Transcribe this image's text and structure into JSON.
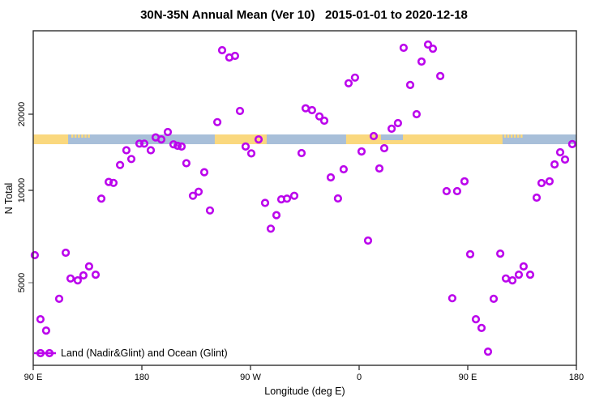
{
  "title": "30N-35N Annual Mean (Ver 10)   2015-01-01 to 2020-12-18",
  "legend": {
    "label": "Land (Nadir&Glint) and Ocean (Glint)"
  },
  "colors": {
    "point": "#BB05EC",
    "land": "#FAD87E",
    "ocean": "#A8BFD9",
    "axis": "#2F2F2F",
    "text": "#000000"
  },
  "axes": {
    "x": {
      "label": "Longitude (deg E)",
      "ticks": [
        {
          "deg": 0,
          "label": "90 E"
        },
        {
          "deg": 90,
          "label": "180"
        },
        {
          "deg": 180,
          "label": "90 W"
        },
        {
          "deg": 270,
          "label": "0"
        },
        {
          "deg": 360,
          "label": "90 E"
        },
        {
          "deg": 450,
          "label": "180"
        }
      ]
    },
    "y": {
      "label": "N Total",
      "ticks": [
        {
          "value": 20000,
          "label": "20000",
          "tick_color": "#2F2F2F"
        },
        {
          "value": 10000,
          "label": "10000",
          "tick_color": "#2F2F2F"
        },
        {
          "value": 5000,
          "label": "5000",
          "tick_color": "#8A8A8A"
        }
      ]
    }
  },
  "map_strip": {
    "y_top": 166,
    "height": 12,
    "notch_height": 7,
    "land_segments_deg": [
      [
        0,
        28.9
      ],
      [
        150.4,
        193.4
      ],
      [
        259.2,
        388.8
      ]
    ],
    "ocean_notch_deg": [
      288.1,
      306.3
    ],
    "island_speckles_deg": [
      31.5,
      34.2,
      37.0,
      39.8,
      42.5,
      45.2,
      390.0,
      392.7,
      395.5,
      398.2,
      401.0,
      403.7
    ]
  },
  "chart_data": {
    "type": "scatter",
    "title": "30N-35N Annual Mean (Ver 10)   2015-01-01 to 2020-12-18",
    "xlabel": "Longitude (deg E)",
    "ylabel": "N Total",
    "x_axis": {
      "note": "wrapped longitude axis starting at 90E, degrees eastward 0-450",
      "tick_labels": [
        "90 E",
        "180",
        "90 W",
        "0",
        "90 E",
        "180"
      ],
      "tick_positions_deg": [
        0,
        90,
        180,
        270,
        360,
        450
      ],
      "range_deg": [
        0,
        450
      ]
    },
    "y_axis": {
      "scale": "log-like",
      "tick_values": [
        5000,
        10000,
        20000
      ],
      "range_approx": [
        2700,
        42000
      ]
    },
    "legend_position": "bottom-left",
    "series": [
      {
        "name": "Land (Nadir&Glint) and Ocean (Glint)",
        "marker": "open-circle",
        "color": "#BB05EC",
        "points": [
          [
            1.3,
            6150
          ],
          [
            6.0,
            3800
          ],
          [
            10.7,
            3490
          ],
          [
            21.5,
            4430
          ],
          [
            26.9,
            6260
          ],
          [
            30.9,
            5160
          ],
          [
            36.9,
            5090
          ],
          [
            41.6,
            5280
          ],
          [
            46.3,
            5650
          ],
          [
            51.7,
            5310
          ],
          [
            56.4,
            9400
          ],
          [
            62.5,
            10800
          ],
          [
            66.5,
            10700
          ],
          [
            71.9,
            12600
          ],
          [
            77.2,
            14400
          ],
          [
            81.3,
            13300
          ],
          [
            88.0,
            15300
          ],
          [
            92.0,
            15300
          ],
          [
            97.4,
            14400
          ],
          [
            101.4,
            16200
          ],
          [
            106.1,
            15900
          ],
          [
            111.5,
            17000
          ],
          [
            116.2,
            15200
          ],
          [
            119.6,
            15000
          ],
          [
            122.9,
            14900
          ],
          [
            126.9,
            12800
          ],
          [
            132.3,
            9600
          ],
          [
            137.0,
            9900
          ],
          [
            141.7,
            11800
          ],
          [
            146.4,
            8600
          ],
          [
            152.5,
            18600
          ],
          [
            156.5,
            35800
          ],
          [
            162.5,
            33500
          ],
          [
            167.2,
            34000
          ],
          [
            171.3,
            20600
          ],
          [
            176.0,
            14900
          ],
          [
            180.7,
            14000
          ],
          [
            186.7,
            15900
          ],
          [
            192.1,
            9100
          ],
          [
            196.8,
            7500
          ],
          [
            201.5,
            8300
          ],
          [
            205.5,
            9350
          ],
          [
            210.2,
            9400
          ],
          [
            216.3,
            9600
          ],
          [
            222.3,
            14040
          ],
          [
            225.7,
            21100
          ],
          [
            231.0,
            20750
          ],
          [
            237.1,
            19600
          ],
          [
            241.1,
            18850
          ],
          [
            246.5,
            11250
          ],
          [
            252.5,
            9410
          ],
          [
            257.2,
            12110
          ],
          [
            261.3,
            26500
          ],
          [
            266.6,
            27900
          ],
          [
            272.0,
            14250
          ],
          [
            277.4,
            6860
          ],
          [
            282.1,
            16390
          ],
          [
            286.8,
            12200
          ],
          [
            290.8,
            14670
          ],
          [
            296.9,
            17520
          ],
          [
            302.2,
            18440
          ],
          [
            306.9,
            36600
          ],
          [
            312.3,
            26100
          ],
          [
            317.6,
            20000
          ],
          [
            321.7,
            32300
          ],
          [
            327.1,
            37700
          ],
          [
            331.1,
            36300
          ],
          [
            337.2,
            28300
          ],
          [
            342.5,
            9940
          ],
          [
            347.2,
            4450
          ],
          [
            351.2,
            9940
          ],
          [
            357.3,
            10850
          ],
          [
            362.0,
            6190
          ],
          [
            366.7,
            3800
          ],
          [
            371.4,
            3560
          ],
          [
            376.8,
            2980
          ],
          [
            381.5,
            4430
          ],
          [
            386.9,
            6220
          ],
          [
            391.6,
            5160
          ],
          [
            397.0,
            5090
          ],
          [
            402.3,
            5310
          ],
          [
            406.3,
            5650
          ],
          [
            411.7,
            5310
          ],
          [
            417.1,
            9470
          ],
          [
            421.1,
            10690
          ],
          [
            427.8,
            10850
          ],
          [
            431.9,
            12660
          ],
          [
            436.6,
            14140
          ],
          [
            440.6,
            13230
          ],
          [
            446.6,
            15230
          ]
        ]
      }
    ]
  }
}
